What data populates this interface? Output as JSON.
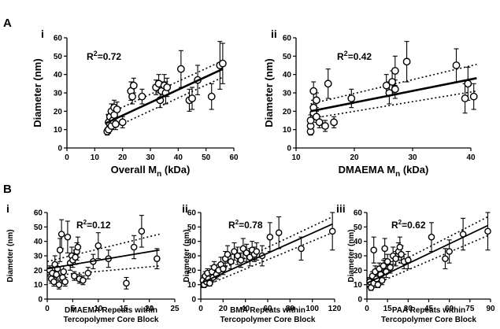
{
  "figure": {
    "panel_A": "A",
    "panel_B": "B"
  },
  "chart_data": [
    {
      "type": "scatter",
      "panel": "A",
      "subpanel": "i",
      "ylabel": "Diameter (nm)",
      "xlabel_main": "Overall M",
      "xlabel_sub": "n",
      "xlabel_suffix": " (kDa)",
      "xlim": [
        0,
        60
      ],
      "ylim": [
        0,
        60
      ],
      "xticks": [
        0,
        10,
        20,
        30,
        40,
        50,
        60
      ],
      "yticks": [
        0,
        10,
        20,
        30,
        40,
        50,
        60
      ],
      "annotation": {
        "base": "R",
        "sup": "2",
        "rest": "=0.72"
      },
      "fit": {
        "x": [
          14,
          56
        ],
        "y": [
          13.5,
          43
        ],
        "ci_upper": [
          18,
          47.5
        ],
        "ci_lower": [
          9,
          38.5
        ]
      },
      "points": [
        {
          "x": 14.5,
          "y": 9,
          "err": 2
        },
        {
          "x": 15,
          "y": 10,
          "err": 2
        },
        {
          "x": 15,
          "y": 14,
          "err": 3
        },
        {
          "x": 15.5,
          "y": 17,
          "err": 3
        },
        {
          "x": 16,
          "y": 20,
          "err": 4
        },
        {
          "x": 16,
          "y": 12,
          "err": 2
        },
        {
          "x": 16.5,
          "y": 15,
          "err": 3
        },
        {
          "x": 17,
          "y": 22,
          "err": 4
        },
        {
          "x": 17,
          "y": 18,
          "err": 3
        },
        {
          "x": 17.5,
          "y": 13,
          "err": 3
        },
        {
          "x": 18,
          "y": 21,
          "err": 4
        },
        {
          "x": 20,
          "y": 14,
          "err": 3
        },
        {
          "x": 23,
          "y": 31,
          "err": 5
        },
        {
          "x": 23.5,
          "y": 28,
          "err": 4
        },
        {
          "x": 24,
          "y": 34,
          "err": 4
        },
        {
          "x": 27,
          "y": 28,
          "err": 4
        },
        {
          "x": 32,
          "y": 33,
          "err": 4
        },
        {
          "x": 33,
          "y": 35,
          "err": 5
        },
        {
          "x": 33.5,
          "y": 26,
          "err": 4
        },
        {
          "x": 34,
          "y": 31,
          "err": 5
        },
        {
          "x": 35,
          "y": 34,
          "err": 6
        },
        {
          "x": 35.5,
          "y": 30,
          "err": 6
        },
        {
          "x": 36,
          "y": 33,
          "err": 5
        },
        {
          "x": 41,
          "y": 43,
          "err": 10
        },
        {
          "x": 44,
          "y": 26,
          "err": 6
        },
        {
          "x": 45,
          "y": 27,
          "err": 6
        },
        {
          "x": 47,
          "y": 37,
          "err": 8
        },
        {
          "x": 52,
          "y": 28,
          "err": 7
        },
        {
          "x": 55,
          "y": 45,
          "err": 13
        },
        {
          "x": 56,
          "y": 46,
          "err": 11
        }
      ]
    },
    {
      "type": "scatter",
      "panel": "A",
      "subpanel": "ii",
      "ylabel": "Diameter (nm)",
      "xlabel_main": "DMAEMA M",
      "xlabel_sub": "n",
      "xlabel_suffix": " (kDa)",
      "xlim": [
        10,
        40
      ],
      "ylim": [
        0,
        60
      ],
      "xticks": [
        10,
        20,
        30,
        40
      ],
      "yticks": [
        0,
        10,
        20,
        30,
        40,
        50,
        60
      ],
      "annotation": {
        "base": "R",
        "sup": "2",
        "rest": "=0.42"
      },
      "fit": {
        "x": [
          12.5,
          41
        ],
        "y": [
          20,
          38
        ],
        "ci_upper": [
          24,
          45.5
        ],
        "ci_lower": [
          16,
          31
        ]
      },
      "points": [
        {
          "x": 12.5,
          "y": 9,
          "err": 2
        },
        {
          "x": 12.5,
          "y": 12,
          "err": 3
        },
        {
          "x": 12.5,
          "y": 15,
          "err": 3
        },
        {
          "x": 13,
          "y": 19,
          "err": 3
        },
        {
          "x": 13,
          "y": 22,
          "err": 4
        },
        {
          "x": 13,
          "y": 31,
          "err": 5
        },
        {
          "x": 13.5,
          "y": 17,
          "err": 3
        },
        {
          "x": 13.5,
          "y": 26,
          "err": 4
        },
        {
          "x": 14,
          "y": 14,
          "err": 3
        },
        {
          "x": 15,
          "y": 12,
          "err": 3
        },
        {
          "x": 15.5,
          "y": 35,
          "err": 8
        },
        {
          "x": 16.5,
          "y": 14,
          "err": 3
        },
        {
          "x": 19.5,
          "y": 27,
          "err": 5
        },
        {
          "x": 25.5,
          "y": 34,
          "err": 6
        },
        {
          "x": 26,
          "y": 30,
          "err": 6
        },
        {
          "x": 26.5,
          "y": 36,
          "err": 6
        },
        {
          "x": 27,
          "y": 42,
          "err": 8
        },
        {
          "x": 27,
          "y": 32,
          "err": 5
        },
        {
          "x": 29,
          "y": 47,
          "err": 11
        },
        {
          "x": 37.5,
          "y": 45,
          "err": 9
        },
        {
          "x": 39,
          "y": 27,
          "err": 8
        },
        {
          "x": 39.5,
          "y": 35,
          "err": 9
        },
        {
          "x": 40.5,
          "y": 28,
          "err": 7
        }
      ]
    },
    {
      "type": "scatter",
      "panel": "B",
      "subpanel": "i",
      "ylabel": "Diameter (nm)",
      "xlabel_lines": [
        "DMAEMA Repeats within",
        "Tercopolymer Core Block"
      ],
      "xlim": [
        0,
        25
      ],
      "ylim": [
        0,
        60
      ],
      "xticks": [
        0,
        5,
        10,
        15,
        20,
        25
      ],
      "yticks": [
        0,
        10,
        20,
        30,
        40,
        50,
        60
      ],
      "annotation": {
        "base": "R",
        "sup": "2",
        "rest": "=0.12"
      },
      "fit": {
        "x": [
          0,
          22
        ],
        "y": [
          21,
          34
        ],
        "ci_upper": [
          26,
          45
        ],
        "ci_lower": [
          16,
          23
        ]
      },
      "points": [
        {
          "x": 0.5,
          "y": 20,
          "err": 3
        },
        {
          "x": 0.8,
          "y": 14,
          "err": 3
        },
        {
          "x": 1,
          "y": 18,
          "err": 4
        },
        {
          "x": 1.3,
          "y": 12,
          "err": 3
        },
        {
          "x": 1.5,
          "y": 24,
          "err": 6
        },
        {
          "x": 1.8,
          "y": 17,
          "err": 3
        },
        {
          "x": 2,
          "y": 21,
          "err": 4
        },
        {
          "x": 2.3,
          "y": 10,
          "err": 3
        },
        {
          "x": 2.5,
          "y": 34,
          "err": 8
        },
        {
          "x": 2.8,
          "y": 45,
          "err": 10
        },
        {
          "x": 3,
          "y": 15,
          "err": 3
        },
        {
          "x": 3.2,
          "y": 19,
          "err": 4
        },
        {
          "x": 3.5,
          "y": 12,
          "err": 3
        },
        {
          "x": 4,
          "y": 43,
          "err": 11
        },
        {
          "x": 4.5,
          "y": 25,
          "err": 5
        },
        {
          "x": 4.8,
          "y": 30,
          "err": 6
        },
        {
          "x": 5,
          "y": 27,
          "err": 5
        },
        {
          "x": 5.3,
          "y": 16,
          "err": 3
        },
        {
          "x": 5.5,
          "y": 29,
          "err": 5
        },
        {
          "x": 5.8,
          "y": 33,
          "err": 6
        },
        {
          "x": 6,
          "y": 36,
          "err": 7
        },
        {
          "x": 6.3,
          "y": 14,
          "err": 3
        },
        {
          "x": 7,
          "y": 13,
          "err": 3
        },
        {
          "x": 8,
          "y": 18,
          "err": 4
        },
        {
          "x": 9,
          "y": 26,
          "err": 5
        },
        {
          "x": 10,
          "y": 37,
          "err": 9
        },
        {
          "x": 12,
          "y": 28,
          "err": 6
        },
        {
          "x": 15.5,
          "y": 11,
          "err": 4
        },
        {
          "x": 17,
          "y": 36,
          "err": 8
        },
        {
          "x": 18.5,
          "y": 47,
          "err": 11
        },
        {
          "x": 21.5,
          "y": 28,
          "err": 7
        }
      ]
    },
    {
      "type": "scatter",
      "panel": "B",
      "subpanel": "ii",
      "ylabel": "Diameter (nm)",
      "xlabel_lines": [
        "BMA Repeats within",
        "Tercopolymer Core Block"
      ],
      "xlim": [
        0,
        120
      ],
      "ylim": [
        0,
        60
      ],
      "xticks": [
        0,
        20,
        40,
        60,
        80,
        100,
        120
      ],
      "yticks": [
        0,
        10,
        20,
        30,
        40,
        50,
        60
      ],
      "annotation": {
        "base": "R",
        "sup": "2",
        "rest": "=0.78"
      },
      "fit": {
        "x": [
          0,
          118
        ],
        "y": [
          11,
          52
        ],
        "ci_upper": [
          14,
          57
        ],
        "ci_lower": [
          8,
          46
        ]
      },
      "points": [
        {
          "x": 2,
          "y": 13,
          "err": 3
        },
        {
          "x": 3,
          "y": 10,
          "err": 2
        },
        {
          "x": 4,
          "y": 16,
          "err": 3
        },
        {
          "x": 5,
          "y": 12,
          "err": 3
        },
        {
          "x": 6,
          "y": 18,
          "err": 3
        },
        {
          "x": 7,
          "y": 14,
          "err": 3
        },
        {
          "x": 8,
          "y": 11,
          "err": 2
        },
        {
          "x": 10,
          "y": 19,
          "err": 4
        },
        {
          "x": 11,
          "y": 15,
          "err": 3
        },
        {
          "x": 12,
          "y": 22,
          "err": 4
        },
        {
          "x": 14,
          "y": 17,
          "err": 3
        },
        {
          "x": 16,
          "y": 20,
          "err": 4
        },
        {
          "x": 18,
          "y": 24,
          "err": 5
        },
        {
          "x": 20,
          "y": 21,
          "err": 4
        },
        {
          "x": 22,
          "y": 28,
          "err": 5
        },
        {
          "x": 24,
          "y": 31,
          "err": 6
        },
        {
          "x": 27,
          "y": 26,
          "err": 5
        },
        {
          "x": 30,
          "y": 33,
          "err": 6
        },
        {
          "x": 33,
          "y": 30,
          "err": 6
        },
        {
          "x": 36,
          "y": 27,
          "err": 5
        },
        {
          "x": 38,
          "y": 35,
          "err": 7
        },
        {
          "x": 41,
          "y": 32,
          "err": 6
        },
        {
          "x": 44,
          "y": 29,
          "err": 6
        },
        {
          "x": 46,
          "y": 34,
          "err": 6
        },
        {
          "x": 48,
          "y": 31,
          "err": 5
        },
        {
          "x": 50,
          "y": 33,
          "err": 6
        },
        {
          "x": 55,
          "y": 30,
          "err": 7
        },
        {
          "x": 62,
          "y": 43,
          "err": 10
        },
        {
          "x": 70,
          "y": 46,
          "err": 11
        },
        {
          "x": 90,
          "y": 35,
          "err": 8
        },
        {
          "x": 118,
          "y": 47,
          "err": 13
        }
      ]
    },
    {
      "type": "scatter",
      "panel": "B",
      "subpanel": "iii",
      "ylabel": "Diameter (nm)",
      "xlabel_lines": [
        "PAA Repeats within",
        "Tercopolymer Core Block"
      ],
      "xlim": [
        0,
        90
      ],
      "ylim": [
        0,
        60
      ],
      "xticks": [
        0,
        15,
        30,
        45,
        60,
        75,
        90
      ],
      "yticks": [
        0,
        10,
        20,
        30,
        40,
        50,
        60
      ],
      "annotation": {
        "base": "R",
        "sup": "2",
        "rest": "=0.62"
      },
      "fit": {
        "x": [
          0,
          88
        ],
        "y": [
          11,
          51
        ],
        "ci_upper": [
          14,
          57
        ],
        "ci_lower": [
          8,
          44
        ]
      },
      "points": [
        {
          "x": 2,
          "y": 12,
          "err": 3
        },
        {
          "x": 3,
          "y": 8,
          "err": 2
        },
        {
          "x": 4,
          "y": 16,
          "err": 3
        },
        {
          "x": 5,
          "y": 11,
          "err": 3
        },
        {
          "x": 5,
          "y": 34,
          "err": 9
        },
        {
          "x": 6,
          "y": 19,
          "err": 4
        },
        {
          "x": 7,
          "y": 14,
          "err": 3
        },
        {
          "x": 8,
          "y": 10,
          "err": 2
        },
        {
          "x": 9,
          "y": 21,
          "err": 4
        },
        {
          "x": 10,
          "y": 17,
          "err": 3
        },
        {
          "x": 11,
          "y": 13,
          "err": 3
        },
        {
          "x": 12,
          "y": 23,
          "err": 4
        },
        {
          "x": 13,
          "y": 35,
          "err": 7
        },
        {
          "x": 14,
          "y": 19,
          "err": 4
        },
        {
          "x": 15,
          "y": 26,
          "err": 5
        },
        {
          "x": 17,
          "y": 22,
          "err": 4
        },
        {
          "x": 19,
          "y": 30,
          "err": 6
        },
        {
          "x": 21,
          "y": 28,
          "err": 5
        },
        {
          "x": 23,
          "y": 33,
          "err": 6
        },
        {
          "x": 24,
          "y": 36,
          "err": 7
        },
        {
          "x": 25,
          "y": 31,
          "err": 6
        },
        {
          "x": 27,
          "y": 26,
          "err": 5
        },
        {
          "x": 30,
          "y": 27,
          "err": 6
        },
        {
          "x": 47,
          "y": 43,
          "err": 10
        },
        {
          "x": 57,
          "y": 28,
          "err": 7
        },
        {
          "x": 60,
          "y": 33,
          "err": 8
        },
        {
          "x": 70,
          "y": 45,
          "err": 11
        },
        {
          "x": 88,
          "y": 47,
          "err": 13
        }
      ]
    }
  ]
}
